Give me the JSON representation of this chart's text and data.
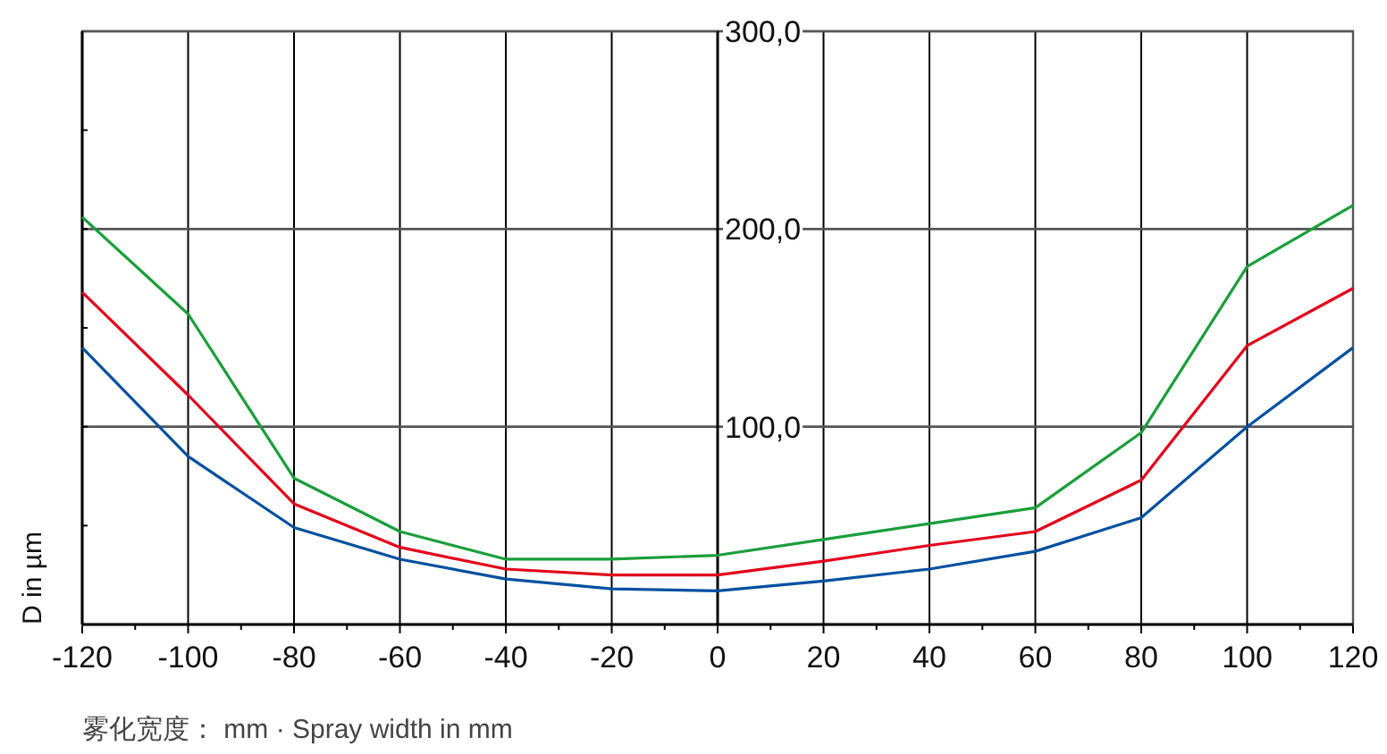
{
  "chart_data": {
    "type": "line",
    "xlabel": "雾化宽度： mm · Spray width in mm",
    "ylabel": "D in µm",
    "x": [
      -120,
      -100,
      -80,
      -60,
      -40,
      -20,
      0,
      20,
      40,
      60,
      80,
      100,
      120
    ],
    "series": [
      {
        "color": "#1a9e3a",
        "values": [
          206,
          157,
          74,
          47,
          33,
          33,
          35,
          43,
          51,
          59,
          97,
          181,
          212
        ]
      },
      {
        "color": "#e3001b",
        "values": [
          168,
          116,
          61,
          39,
          28,
          25,
          25,
          32,
          40,
          47,
          73,
          141,
          170
        ]
      },
      {
        "color": "#0050a0",
        "values": [
          140,
          85,
          49,
          33,
          23,
          18,
          17,
          22,
          28,
          37,
          54,
          100,
          140
        ]
      }
    ],
    "xlim": [
      -120,
      120
    ],
    "xticks": [
      -120,
      {
        "value": -110,
        "label": null
      },
      -100,
      {
        "value": -90,
        "label": null
      },
      -80,
      {
        "value": -70,
        "label": null
      },
      -60,
      {
        "value": -50,
        "label": null
      },
      -40,
      {
        "value": -30,
        "label": null
      },
      -20,
      {
        "value": -10,
        "label": null
      },
      0,
      {
        "value": 10,
        "label": null
      },
      20,
      {
        "value": 30,
        "label": null
      },
      40,
      {
        "value": 50,
        "label": null
      },
      60,
      {
        "value": 70,
        "label": null
      },
      80,
      {
        "value": 90,
        "label": null
      },
      100,
      {
        "value": 110,
        "label": null
      },
      120
    ],
    "ylim": [
      0,
      300
    ],
    "yticks": [
      {
        "value": 50,
        "label": null
      },
      {
        "value": 100,
        "label": "100,0"
      },
      {
        "value": 150,
        "label": null
      },
      {
        "value": 200,
        "label": "200,0"
      },
      {
        "value": 250,
        "label": null
      },
      {
        "value": 300,
        "label": "300,0"
      }
    ],
    "grid": true,
    "marker": "none",
    "line_style": "solid"
  }
}
